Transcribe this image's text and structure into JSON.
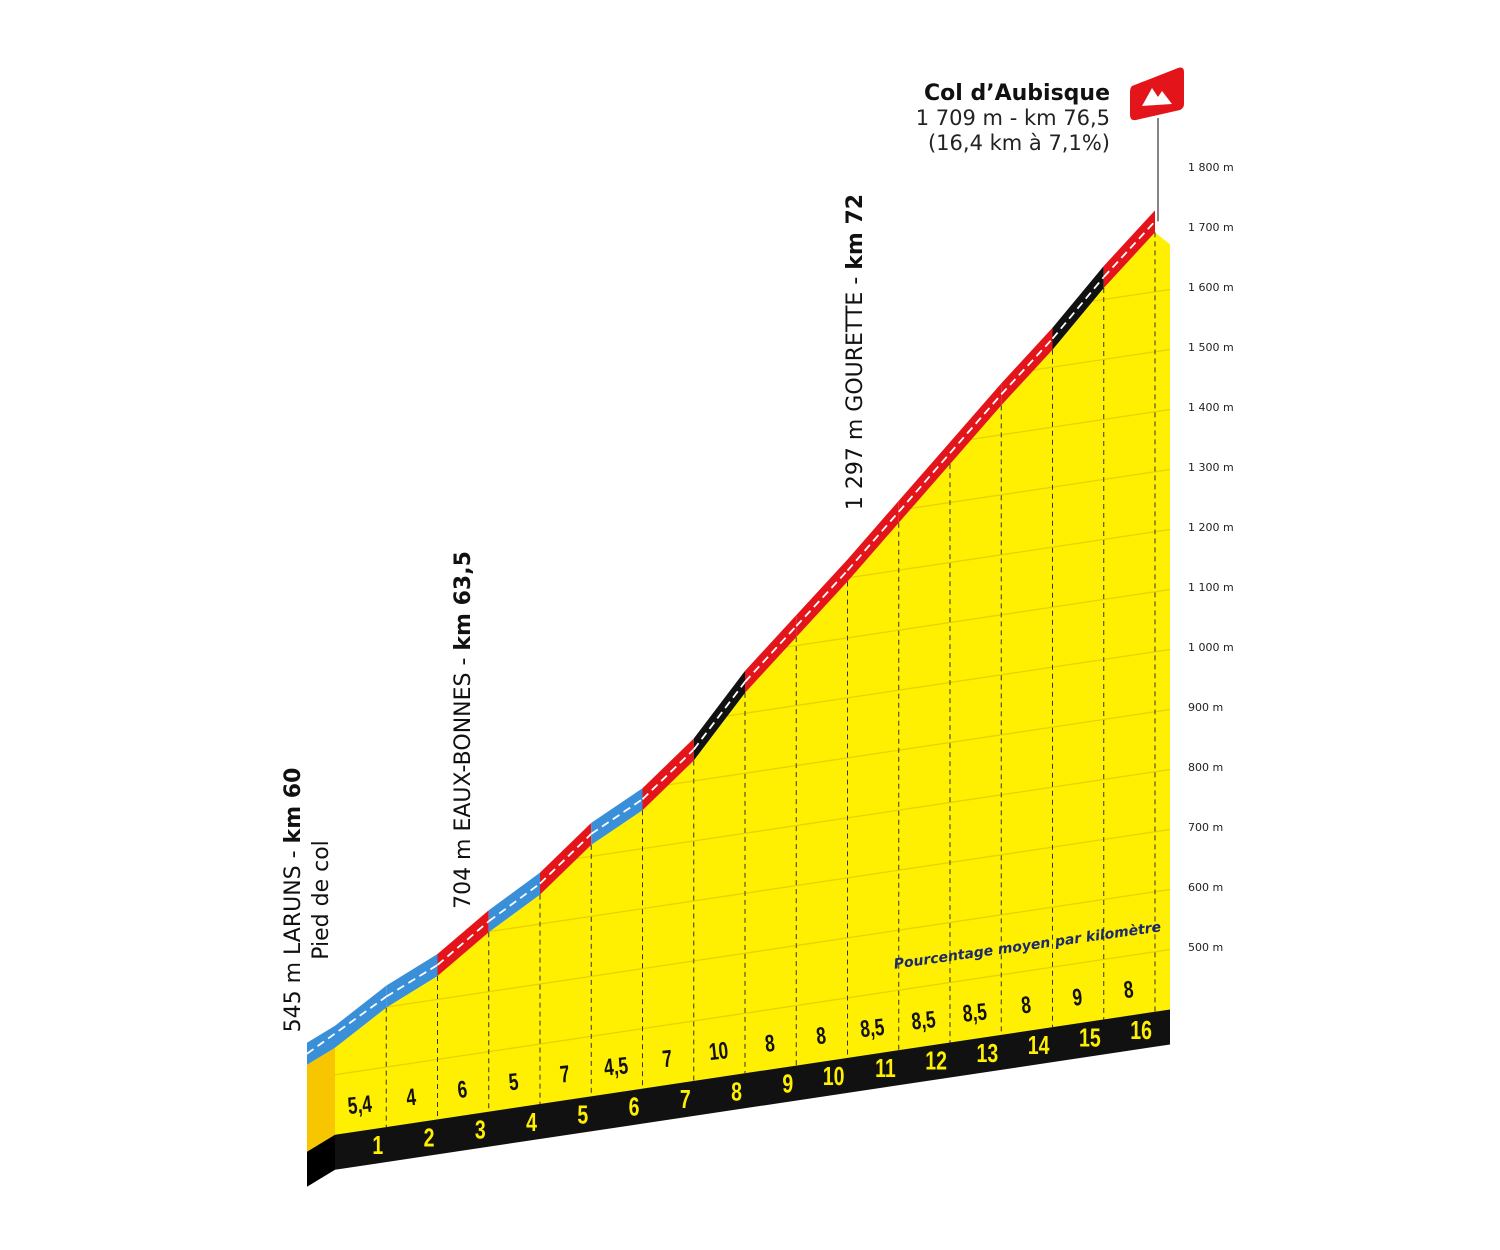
{
  "chart_data": {
    "type": "climb-profile",
    "title": "Col d’Aubisque",
    "subtitle": [
      "1 709 m - km 76,5",
      "(16,4 km à 7,1%)"
    ],
    "annotations": [
      {
        "text": "545 m LARUNS -",
        "bold": "km 60",
        "note": "Pied de col"
      },
      {
        "text": "704 m EAUX-BONNES -",
        "bold": "km 63,5"
      },
      {
        "text": "1 297 m GOURETTE -",
        "bold": "km 72"
      }
    ],
    "gradient_caption": "Pourcentage moyen par kilomètre",
    "start_elevation": 545,
    "gradients": [
      5.4,
      4,
      6,
      5,
      7,
      4.5,
      7,
      10,
      8,
      8,
      8.5,
      8.5,
      8.5,
      8,
      9,
      8
    ],
    "value_labels": [
      "5,4",
      "4",
      "6",
      "5",
      "7",
      "4,5",
      "7",
      "10",
      "8",
      "8",
      "8,5",
      "8,5",
      "8,5",
      "8",
      "9",
      "8"
    ],
    "segment_colors": [
      "#3a8fd9",
      "#3a8fd9",
      "#e3151a",
      "#3a8fd9",
      "#e3151a",
      "#3a8fd9",
      "#e3151a",
      "#111111",
      "#e3151a",
      "#e3151a",
      "#e3151a",
      "#e3151a",
      "#e3151a",
      "#e3151a",
      "#111111",
      "#e3151a"
    ],
    "fill_color": "#ffef00",
    "xlim": [
      0,
      16
    ],
    "xticks": [
      1,
      2,
      3,
      4,
      5,
      6,
      7,
      8,
      9,
      10,
      11,
      12,
      13,
      14,
      15,
      16
    ],
    "ylim": [
      400,
      1800
    ],
    "yticks": [
      {
        "value": 500,
        "label": "500 m"
      },
      {
        "value": 600,
        "label": "600 m"
      },
      {
        "value": 700,
        "label": "700 m"
      },
      {
        "value": 800,
        "label": "800 m"
      },
      {
        "value": 900,
        "label": "900 m"
      },
      {
        "value": 1000,
        "label": "1 000 m"
      },
      {
        "value": 1100,
        "label": "1 100 m"
      },
      {
        "value": 1200,
        "label": "1 200 m"
      },
      {
        "value": 1300,
        "label": "1 300 m"
      },
      {
        "value": 1400,
        "label": "1 400 m"
      },
      {
        "value": 1500,
        "label": "1 500 m"
      },
      {
        "value": 1600,
        "label": "1 600 m"
      },
      {
        "value": 1700,
        "label": "1 700 m"
      },
      {
        "value": 1800,
        "label": "1 800 m"
      }
    ],
    "grid": true
  }
}
